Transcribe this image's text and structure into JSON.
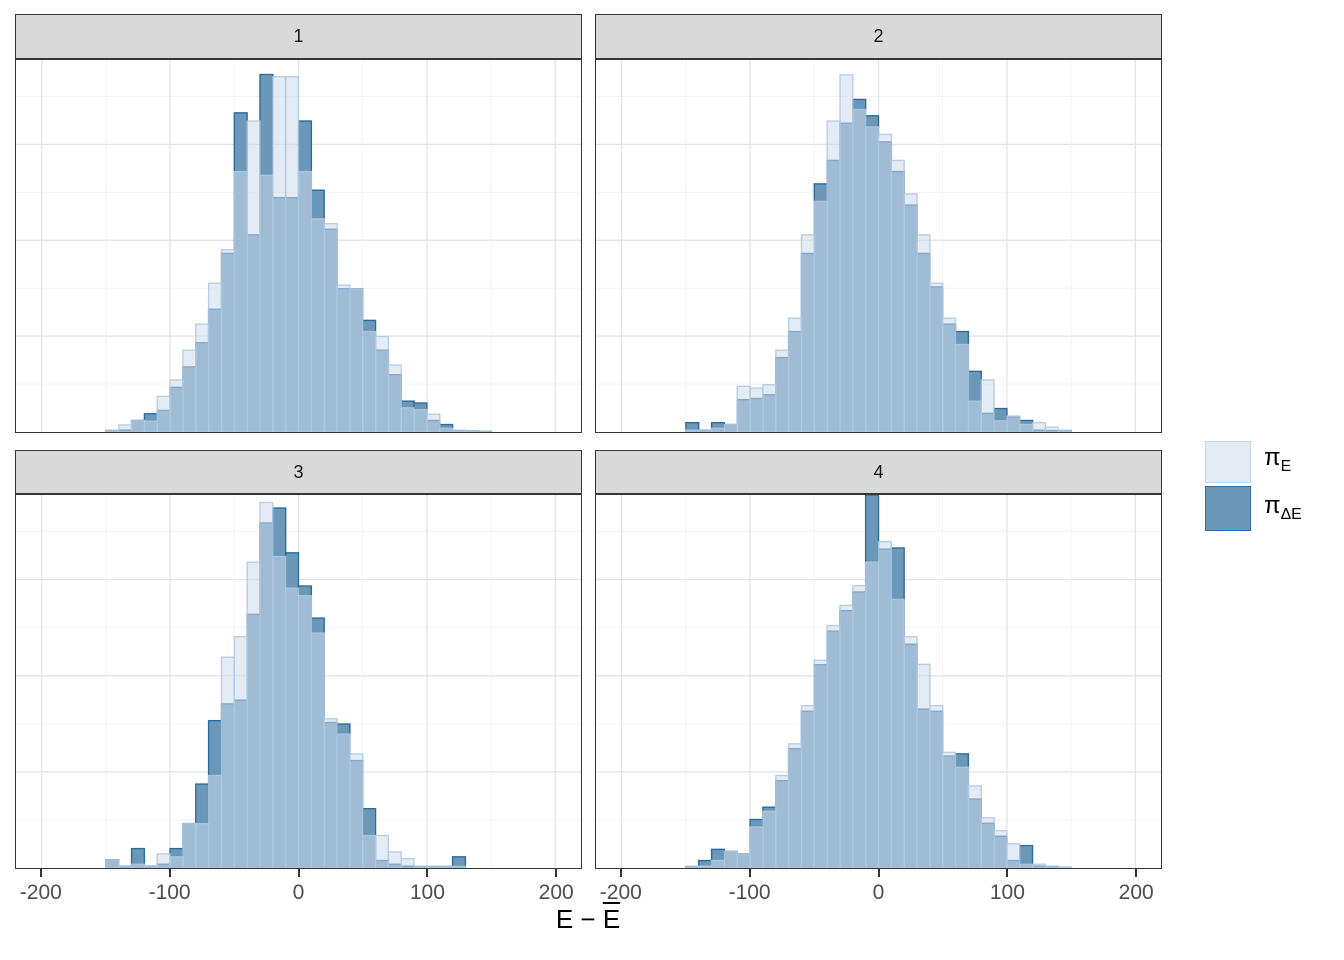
{
  "chart_data": {
    "type": "histogram",
    "faceted": true,
    "title": "",
    "xlabel_plain": "E − ",
    "xlabel_overline": "E",
    "ylabel": "",
    "y_axis_note": "no y ticks or labels shown; series values are bar heights as fraction of panel height (0-1)",
    "x_range": [
      -220,
      220
    ],
    "x_ticks": [
      -200,
      -100,
      0,
      100,
      200
    ],
    "x_tick_labels": [
      "-200",
      "-100",
      "0",
      "100",
      "200"
    ],
    "x_minor_gridlines": [
      -150,
      -50,
      50,
      150
    ],
    "h_gridline_count": 7,
    "bin_start": -150,
    "bin_width": 10,
    "legend_position": "right",
    "series_names": [
      "π_E",
      "π_ΔE"
    ],
    "facets": [
      {
        "label": "1",
        "light": [
          0.004,
          0.019,
          0.031,
          0.029,
          0.096,
          0.14,
          0.22,
          0.29,
          0.4,
          0.49,
          0.7,
          0.836,
          0.69,
          0.955,
          0.955,
          0.7,
          0.573,
          0.56,
          0.395,
          0.385,
          0.27,
          0.257,
          0.18,
          0.065,
          0.06,
          0.048,
          0.01,
          0.004,
          0.003,
          0.002
        ],
        "dark": [
          0.004,
          0.005,
          0.031,
          0.049,
          0.058,
          0.12,
          0.175,
          0.24,
          0.33,
          0.48,
          0.858,
          0.53,
          0.961,
          0.63,
          0.63,
          0.836,
          0.65,
          0.545,
          0.385,
          0.385,
          0.3,
          0.22,
          0.154,
          0.083,
          0.078,
          0.031,
          0.02,
          0.004,
          0.003,
          0.002
        ]
      },
      {
        "label": "2",
        "light": [
          0.005,
          0.005,
          0.01,
          0.02,
          0.123,
          0.118,
          0.127,
          0.22,
          0.306,
          0.53,
          0.62,
          0.836,
          0.96,
          0.867,
          0.82,
          0.8,
          0.73,
          0.64,
          0.53,
          0.4,
          0.306,
          0.235,
          0.083,
          0.14,
          0.03,
          0.043,
          0.02,
          0.025,
          0.013,
          0.004
        ],
        "dark": [
          0.025,
          0.005,
          0.025,
          0.02,
          0.087,
          0.09,
          0.1,
          0.2,
          0.27,
          0.48,
          0.667,
          0.73,
          0.83,
          0.894,
          0.85,
          0.78,
          0.7,
          0.61,
          0.48,
          0.39,
          0.29,
          0.27,
          0.163,
          0.05,
          0.063,
          0.04,
          0.031,
          0.005,
          0.004,
          0.004
        ]
      },
      {
        "label": "3",
        "light": [
          0.022,
          0.005,
          0.01,
          0.005,
          0.038,
          0.03,
          0.119,
          0.119,
          0.248,
          0.565,
          0.62,
          0.82,
          0.98,
          0.835,
          0.75,
          0.73,
          0.63,
          0.4,
          0.359,
          0.306,
          0.087,
          0.087,
          0.043,
          0.025,
          0.004,
          0.004,
          0.004,
          0.004,
          0.0,
          0.0
        ],
        "dark": [
          0.022,
          0.005,
          0.052,
          0.005,
          0.01,
          0.052,
          0.119,
          0.225,
          0.395,
          0.44,
          0.45,
          0.68,
          0.925,
          0.965,
          0.845,
          0.756,
          0.67,
          0.39,
          0.386,
          0.288,
          0.159,
          0.02,
          0.01,
          0.005,
          0.004,
          0.004,
          0.004,
          0.03,
          0.0,
          0.0
        ]
      },
      {
        "label": "4",
        "light": [
          0.004,
          0.005,
          0.02,
          0.045,
          0.038,
          0.11,
          0.152,
          0.248,
          0.333,
          0.435,
          0.557,
          0.65,
          0.704,
          0.757,
          0.82,
          0.875,
          0.72,
          0.62,
          0.546,
          0.435,
          0.31,
          0.27,
          0.22,
          0.135,
          0.1,
          0.065,
          0.01,
          0.01,
          0.004,
          0.003
        ],
        "dark": [
          0.004,
          0.02,
          0.05,
          0.045,
          0.038,
          0.13,
          0.163,
          0.234,
          0.32,
          0.42,
          0.545,
          0.635,
          0.69,
          0.74,
          1.0,
          0.855,
          0.858,
          0.6,
          0.426,
          0.42,
          0.3,
          0.306,
          0.185,
          0.12,
          0.085,
          0.02,
          0.06,
          0.005,
          0.004,
          0.0
        ]
      }
    ]
  },
  "legend": {
    "items": [
      {
        "symbol": "π",
        "subscript": "E",
        "fill": "#E4EBF5",
        "border": "#C4D5E8"
      },
      {
        "symbol": "π",
        "subscript": "ΔE",
        "fill": "#6B98B8",
        "border": "#2E6C9C"
      }
    ]
  },
  "colors": {
    "light_fill": "#CCDAEC",
    "light_fill_opacity": 0.55,
    "light_stroke": "#AFC8E2",
    "dark_fill": "#6B98B8",
    "dark_stroke": "#2E6C9C",
    "strip_bg": "#D9D9D9",
    "panel_border": "#363636",
    "grid_major": "#E3E3E3",
    "grid_minor": "#F2F2F2",
    "tick_color": "#333333",
    "tick_label_color": "#4D4D4D"
  }
}
